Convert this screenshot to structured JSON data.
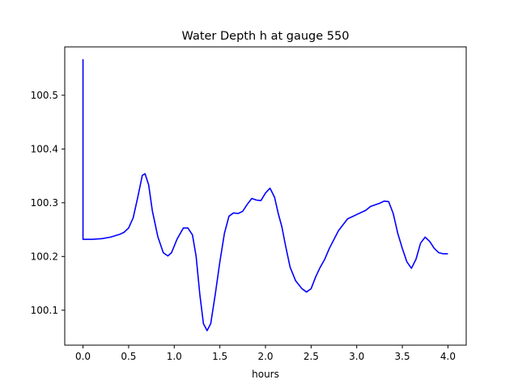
{
  "chart_data": {
    "type": "line",
    "title": "Water Depth h at gauge 550",
    "xlabel": "hours",
    "ylabel": "",
    "xlim": [
      -0.2,
      4.2
    ],
    "ylim": [
      100.035,
      100.59
    ],
    "grid": false,
    "xticks": [
      {
        "value": 0.0,
        "label": "0.0"
      },
      {
        "value": 0.5,
        "label": "0.5"
      },
      {
        "value": 1.0,
        "label": "1.0"
      },
      {
        "value": 1.5,
        "label": "1.5"
      },
      {
        "value": 2.0,
        "label": "2.0"
      },
      {
        "value": 2.5,
        "label": "2.5"
      },
      {
        "value": 3.0,
        "label": "3.0"
      },
      {
        "value": 3.5,
        "label": "3.5"
      },
      {
        "value": 4.0,
        "label": "4.0"
      }
    ],
    "yticks": [
      {
        "value": 100.1,
        "label": "100.1"
      },
      {
        "value": 100.2,
        "label": "100.2"
      },
      {
        "value": 100.3,
        "label": "100.3"
      },
      {
        "value": 100.4,
        "label": "100.4"
      },
      {
        "value": 100.5,
        "label": "100.5"
      }
    ],
    "series": [
      {
        "color": "#0000ff",
        "x": [
          0.0,
          0.0,
          0.0,
          0.1,
          0.2,
          0.3,
          0.4,
          0.45,
          0.5,
          0.55,
          0.6,
          0.65,
          0.68,
          0.72,
          0.76,
          0.82,
          0.88,
          0.93,
          0.97,
          1.03,
          1.1,
          1.15,
          1.2,
          1.24,
          1.28,
          1.32,
          1.36,
          1.4,
          1.45,
          1.5,
          1.55,
          1.6,
          1.65,
          1.7,
          1.75,
          1.8,
          1.85,
          1.9,
          1.95,
          2.0,
          2.05,
          2.1,
          2.14,
          2.18,
          2.22,
          2.27,
          2.33,
          2.4,
          2.45,
          2.5,
          2.55,
          2.6,
          2.65,
          2.7,
          2.8,
          2.9,
          3.0,
          3.1,
          3.15,
          3.2,
          3.25,
          3.3,
          3.35,
          3.4,
          3.45,
          3.5,
          3.55,
          3.6,
          3.65,
          3.7,
          3.75,
          3.8,
          3.85,
          3.9,
          3.95,
          4.0
        ],
        "y": [
          100.567,
          100.232,
          100.232,
          100.232,
          100.233,
          100.236,
          100.241,
          100.245,
          100.253,
          100.272,
          100.31,
          100.351,
          100.354,
          100.333,
          100.285,
          100.237,
          100.207,
          100.201,
          100.207,
          100.232,
          100.253,
          100.253,
          100.24,
          100.2,
          100.13,
          100.075,
          100.062,
          100.075,
          100.13,
          100.19,
          100.243,
          100.275,
          100.281,
          100.28,
          100.284,
          100.297,
          100.308,
          100.305,
          100.304,
          100.318,
          100.327,
          100.31,
          100.28,
          100.255,
          100.22,
          100.18,
          100.155,
          100.14,
          100.134,
          100.14,
          100.162,
          100.18,
          100.195,
          100.215,
          100.248,
          100.27,
          100.278,
          100.286,
          100.293,
          100.296,
          100.299,
          100.303,
          100.302,
          100.28,
          100.243,
          100.215,
          100.19,
          100.178,
          100.195,
          100.225,
          100.236,
          100.228,
          100.215,
          100.207,
          100.205,
          100.205
        ]
      }
    ]
  }
}
